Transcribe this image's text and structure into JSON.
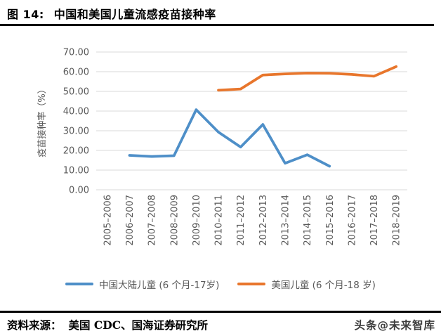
{
  "header": {
    "figure_label": "图 14:",
    "title": "中国和美国儿童流感疫苗接种率"
  },
  "chart_data": {
    "type": "line",
    "title": "中国和美国儿童流感疫苗接种率",
    "ylabel": "疫苗接种率（%）",
    "xlabel": "",
    "ylim": [
      0,
      70
    ],
    "ytick_step": 10,
    "ytick_decimals": 2,
    "grid": true,
    "legend_position": "bottom",
    "gridline_color": "#d9d9d9",
    "tick_color": "#595959",
    "categories": [
      "2005–2006",
      "2006–2007",
      "2007–2008",
      "2008–2009",
      "2009–2010",
      "2010–2011",
      "2011–2012",
      "2012–2013",
      "2013–2014",
      "2014–2015",
      "2015–2016",
      "2016–2017",
      "2017–2018",
      "2018–2019"
    ],
    "series": [
      {
        "name": "中国大陆儿童 (6 个月-17岁)",
        "color": "#4e8fc8",
        "values": [
          null,
          17.5,
          16.9,
          17.3,
          40.7,
          29.3,
          21.7,
          33.2,
          13.5,
          17.8,
          12.0,
          null,
          null,
          null
        ]
      },
      {
        "name": "美国儿童 (6 个月-18 岁)",
        "color": "#e8762c",
        "values": [
          null,
          null,
          null,
          null,
          null,
          50.6,
          51.2,
          58.3,
          58.9,
          59.3,
          59.2,
          58.6,
          57.7,
          62.6
        ]
      }
    ]
  },
  "footer": {
    "source_label": "资料来源：",
    "source_text": "美国 CDC、国海证券研究所",
    "watermark": "头条@未来智库"
  }
}
